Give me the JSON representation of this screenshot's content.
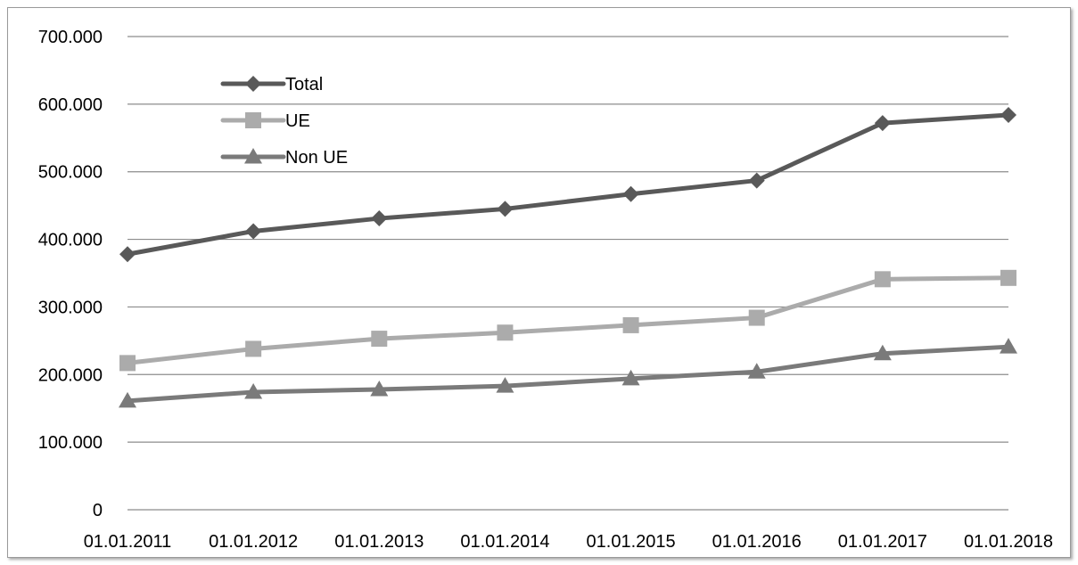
{
  "chart_data": {
    "type": "line",
    "title": "",
    "xlabel": "",
    "ylabel": "",
    "categories": [
      "01.01.2011",
      "01.01.2012",
      "01.01.2013",
      "01.01.2014",
      "01.01.2015",
      "01.01.2016",
      "01.01.2017",
      "01.01.2018"
    ],
    "y_ticks": [
      "0",
      "100.000",
      "200.000",
      "300.000",
      "400.000",
      "500.000",
      "600.000",
      "700.000"
    ],
    "ylim": [
      0,
      700000
    ],
    "grid": true,
    "legend_position": "top-left",
    "series": [
      {
        "name": "Total",
        "marker": "diamond",
        "color": "#595959",
        "values": [
          378000,
          412000,
          431000,
          445000,
          467000,
          487000,
          572000,
          584000
        ]
      },
      {
        "name": "UE",
        "marker": "square",
        "color": "#ababab",
        "values": [
          217000,
          238000,
          253000,
          262000,
          273000,
          284000,
          341000,
          343000
        ]
      },
      {
        "name": "Non UE",
        "marker": "triangle",
        "color": "#7a7a7a",
        "values": [
          161000,
          174000,
          178000,
          183000,
          194000,
          204000,
          231000,
          241000
        ]
      }
    ]
  }
}
